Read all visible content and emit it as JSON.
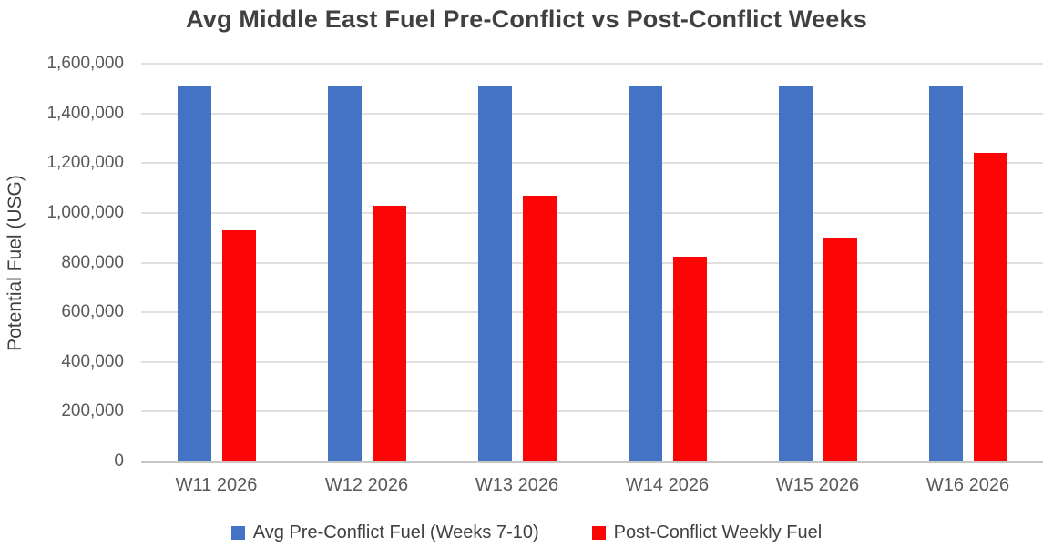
{
  "title": "Avg Middle East Fuel Pre-Conflict vs Post-Conflict Weeks",
  "chart_data": {
    "type": "bar",
    "title": "Avg Middle East Fuel Pre-Conflict vs Post-Conflict Weeks",
    "xlabel": "",
    "ylabel": "Potential Fuel (USG)",
    "categories": [
      "W11 2026",
      "W12 2026",
      "W13 2026",
      "W14 2026",
      "W15 2026",
      "W16 2026"
    ],
    "series": [
      {
        "name": "Avg Pre-Conflict Fuel (Weeks 7-10)",
        "color": "#4472C4",
        "values": [
          1510000,
          1510000,
          1510000,
          1510000,
          1510000,
          1510000
        ]
      },
      {
        "name": "Post-Conflict Weekly Fuel",
        "color": "#FB0505",
        "values": [
          930000,
          1030000,
          1070000,
          825000,
          900000,
          1240000
        ]
      }
    ],
    "ylim": [
      0,
      1600000
    ],
    "yticks": [
      0,
      200000,
      400000,
      600000,
      800000,
      1000000,
      1200000,
      1400000,
      1600000
    ],
    "ytick_labels": [
      "0",
      "200,000",
      "400,000",
      "600,000",
      "800,000",
      "1,000,000",
      "1,200,000",
      "1,400,000",
      "1,600,000"
    ],
    "grid": true,
    "legend_position": "bottom"
  },
  "colors": {
    "background": "#FFFFFF",
    "title_text": "#404040",
    "axis_text": "#595959",
    "gridline": "#E0E0E0",
    "axis_line": "#C6C6C6",
    "series_blue": "#4472C4",
    "series_red": "#FB0505"
  }
}
